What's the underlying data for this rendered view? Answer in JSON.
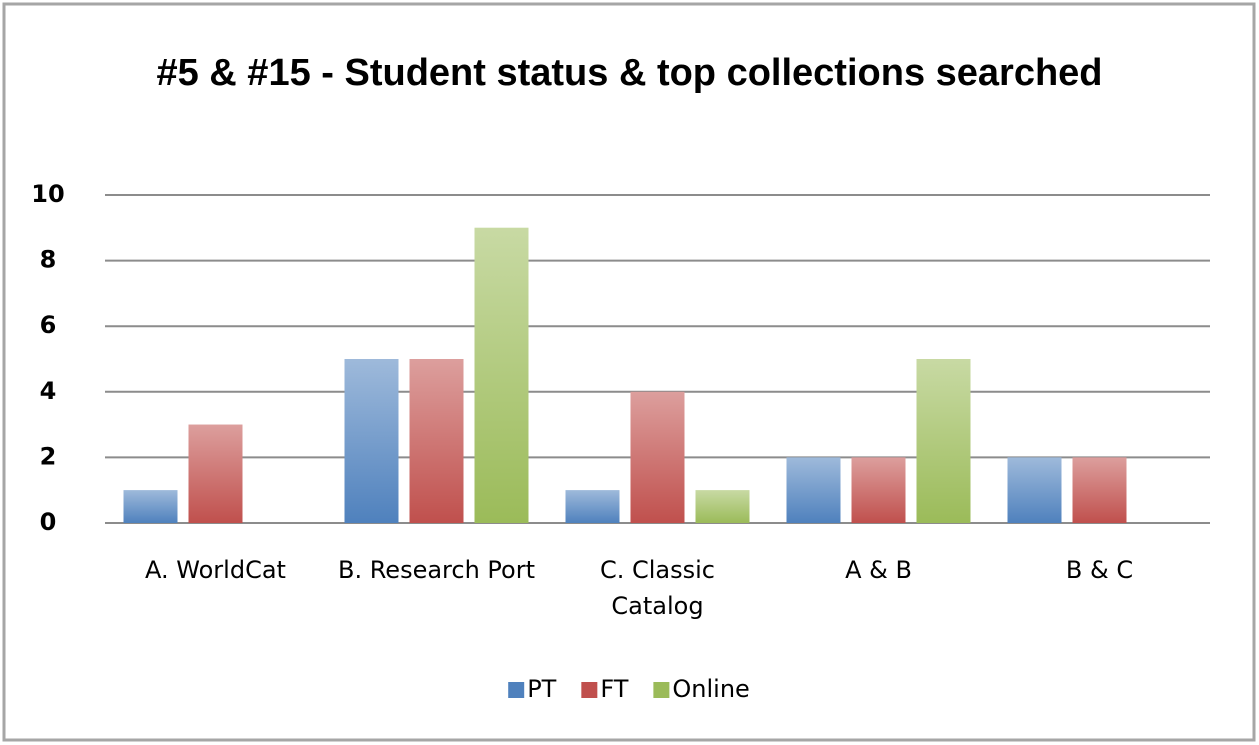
{
  "chart_data": {
    "type": "bar",
    "title": "#5 & #15 - Student status & top collections searched",
    "categories": [
      "A. WorldCat",
      "B. Research Port",
      "C. Classic Catalog",
      "A & B",
      "B & C"
    ],
    "series": [
      {
        "name": "PT",
        "color": "#4f81bd",
        "values": [
          1,
          5,
          1,
          2,
          2
        ]
      },
      {
        "name": "FT",
        "color": "#c0504d",
        "values": [
          3,
          5,
          4,
          2,
          2
        ]
      },
      {
        "name": "Online",
        "color": "#9bbb59",
        "values": [
          0,
          9,
          1,
          5,
          0
        ]
      }
    ],
    "ylim": [
      0,
      10
    ],
    "yticks": [
      0,
      2,
      4,
      6,
      8,
      10
    ],
    "grid": true,
    "legend": "bottom"
  }
}
